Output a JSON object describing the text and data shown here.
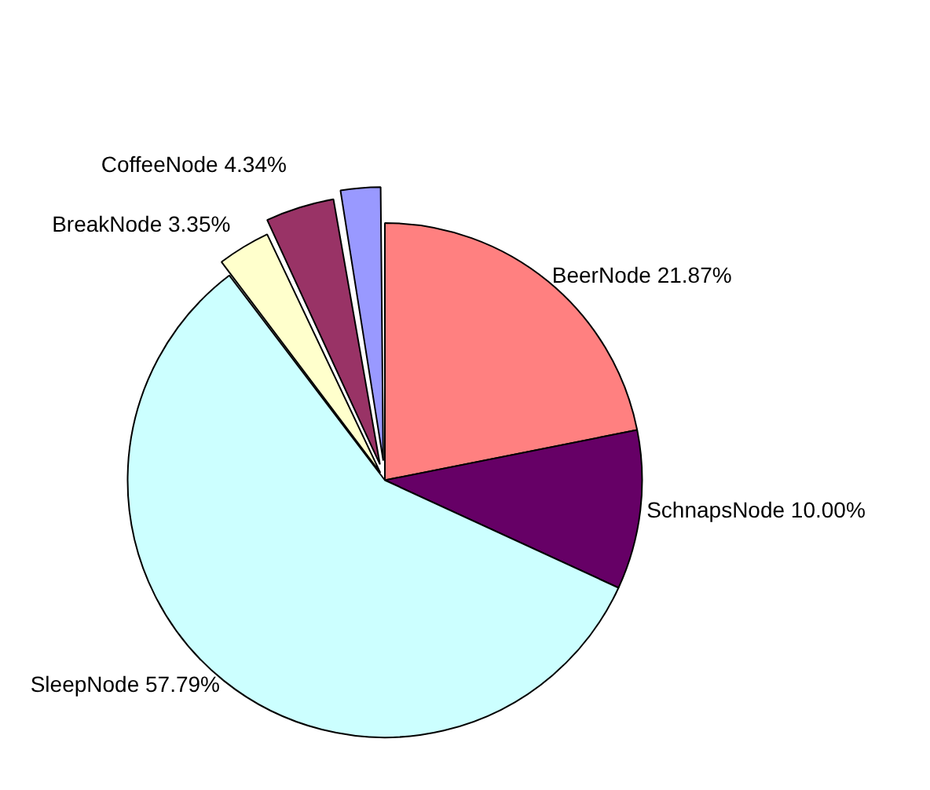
{
  "chart_data": {
    "type": "pie",
    "categories": [
      "BeerNode",
      "SchnapsNode",
      "SleepNode",
      "BreakNode",
      "CoffeeNode",
      null
    ],
    "values": [
      21.87,
      10.0,
      57.79,
      3.35,
      4.34,
      2.65
    ],
    "colors": [
      "#ff8080",
      "#660066",
      "#ccffff",
      "#ffffcc",
      "#993366",
      "#9999ff"
    ],
    "value_labels": [
      "21.87%",
      "10.00%",
      "57.79%",
      "3.35%",
      "4.34%",
      null
    ],
    "legend": false
  }
}
